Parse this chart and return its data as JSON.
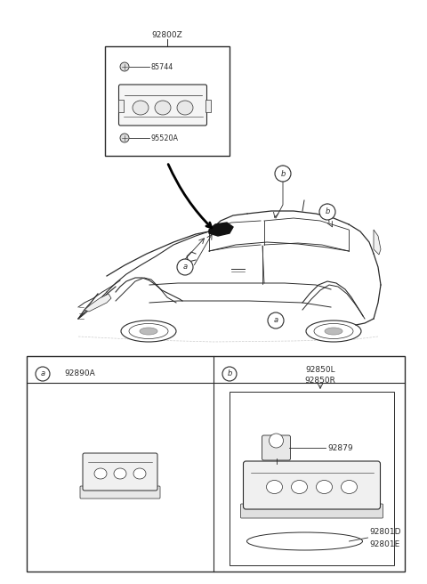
{
  "bg_color": "#ffffff",
  "line_color": "#2a2a2a",
  "text_color": "#2a2a2a",
  "fig_width": 4.8,
  "fig_height": 6.56,
  "dpi": 100,
  "top_box_label": "92800Z",
  "part_85744": "85744",
  "part_95520A": "95520A",
  "part_92890A": "92890A",
  "part_92850L": "92850L",
  "part_92850R": "92850R",
  "part_92879": "92879",
  "part_92801D": "92801D",
  "part_92801E": "92801E",
  "font_size": 6.5,
  "font_size_sm": 5.8
}
